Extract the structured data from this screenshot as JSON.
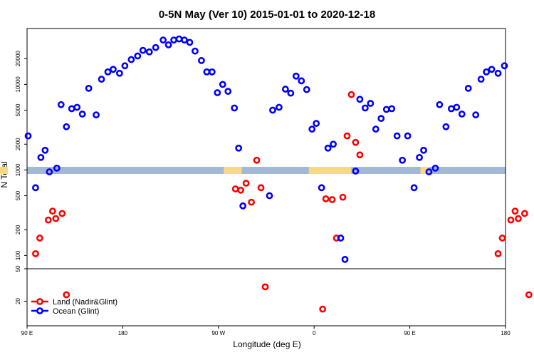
{
  "chart_data": {
    "type": "scatter",
    "title": "0-5N May (Ver 10)   2015-01-01 to 2020-12-18",
    "xlabel": "Longitude (deg E)",
    "ylabel": "N Total",
    "x_ticks": [
      {
        "value": 90,
        "label": "90 E"
      },
      {
        "value": 180,
        "label": "180"
      },
      {
        "value": 270,
        "label": "90 W"
      },
      {
        "value": 360,
        "label": "0"
      },
      {
        "value": 450,
        "label": "90 E"
      },
      {
        "value": 540,
        "label": "180"
      }
    ],
    "xlim": [
      90,
      540
    ],
    "y_scale": "log",
    "y_ticks_upper": [
      100,
      200,
      500,
      1000,
      2000,
      5000,
      10000,
      20000
    ],
    "y_ticks_lower": [
      20,
      50
    ],
    "ylim_upper": [
      70,
      45000
    ],
    "ylim_lower": [
      10,
      50
    ],
    "grid": false,
    "legend_position": "bottom-left",
    "land_band_color": "#a3b8d5",
    "land_patch_color": "#f8d880",
    "series": [
      {
        "name": "Land (Nadir&Glint)",
        "color": "#ff0000",
        "points": [
          [
            98,
            105
          ],
          [
            102,
            160
          ],
          [
            110,
            260
          ],
          [
            114,
            330
          ],
          [
            117,
            270
          ],
          [
            123,
            310
          ],
          [
            127,
            24
          ],
          [
            286,
            600
          ],
          [
            291,
            580
          ],
          [
            296,
            700
          ],
          [
            301,
            420
          ],
          [
            306,
            1300
          ],
          [
            310,
            620
          ],
          [
            314,
            30
          ],
          [
            368,
            16
          ],
          [
            371,
            460
          ],
          [
            377,
            450
          ],
          [
            381,
            160
          ],
          [
            387,
            480
          ],
          [
            391,
            2500
          ],
          [
            395,
            7600
          ],
          [
            399,
            2100
          ],
          [
            403,
            1500
          ],
          [
            533,
            105
          ],
          [
            537,
            160
          ],
          [
            545,
            260
          ],
          [
            549,
            330
          ],
          [
            552,
            270
          ],
          [
            558,
            310
          ],
          [
            562,
            24
          ]
        ]
      },
      {
        "name": "Ocean (Glint)",
        "color": "#0000ff",
        "points": [
          [
            91,
            2500
          ],
          [
            98,
            620
          ],
          [
            103,
            1400
          ],
          [
            107,
            1700
          ],
          [
            111,
            950
          ],
          [
            118,
            1050
          ],
          [
            122,
            5800
          ],
          [
            127,
            3200
          ],
          [
            132,
            5200
          ],
          [
            137,
            5400
          ],
          [
            142,
            4500
          ],
          [
            148,
            9000
          ],
          [
            155,
            4400
          ],
          [
            160,
            11500
          ],
          [
            166,
            14000
          ],
          [
            171,
            15000
          ],
          [
            177,
            13500
          ],
          [
            182,
            16500
          ],
          [
            188,
            19500
          ],
          [
            194,
            21500
          ],
          [
            199,
            25000
          ],
          [
            205,
            24000
          ],
          [
            211,
            27000
          ],
          [
            218,
            33000
          ],
          [
            223,
            29000
          ],
          [
            228,
            33000
          ],
          [
            233,
            34000
          ],
          [
            238,
            33000
          ],
          [
            243,
            31000
          ],
          [
            248,
            24500
          ],
          [
            254,
            19000
          ],
          [
            259,
            14000
          ],
          [
            264,
            14000
          ],
          [
            269,
            8000
          ],
          [
            274,
            10000
          ],
          [
            279,
            8300
          ],
          [
            285,
            5300
          ],
          [
            289,
            1800
          ],
          [
            293,
            380
          ],
          [
            318,
            500
          ],
          [
            321,
            5000
          ],
          [
            327,
            5400
          ],
          [
            333,
            8800
          ],
          [
            338,
            7900
          ],
          [
            343,
            12500
          ],
          [
            348,
            11000
          ],
          [
            353,
            8700
          ],
          [
            358,
            3000
          ],
          [
            362,
            3500
          ],
          [
            367,
            620
          ],
          [
            373,
            1800
          ],
          [
            378,
            2000
          ],
          [
            385,
            160
          ],
          [
            389,
            90
          ],
          [
            399,
            970
          ],
          [
            403,
            6700
          ],
          [
            408,
            5300
          ],
          [
            413,
            6000
          ],
          [
            418,
            3000
          ],
          [
            423,
            4000
          ],
          [
            428,
            5100
          ],
          [
            433,
            5200
          ],
          [
            438,
            2500
          ],
          [
            443,
            1300
          ],
          [
            448,
            2500
          ],
          [
            454,
            620
          ],
          [
            459,
            1400
          ],
          [
            463,
            1700
          ],
          [
            468,
            950
          ],
          [
            474,
            1050
          ],
          [
            478,
            5800
          ],
          [
            484,
            3200
          ],
          [
            489,
            5200
          ],
          [
            494,
            5400
          ],
          [
            499,
            4500
          ],
          [
            505,
            9000
          ],
          [
            512,
            4400
          ],
          [
            517,
            11500
          ],
          [
            522,
            14000
          ],
          [
            527,
            15000
          ],
          [
            533,
            13500
          ],
          [
            539,
            16500
          ]
        ]
      }
    ]
  }
}
